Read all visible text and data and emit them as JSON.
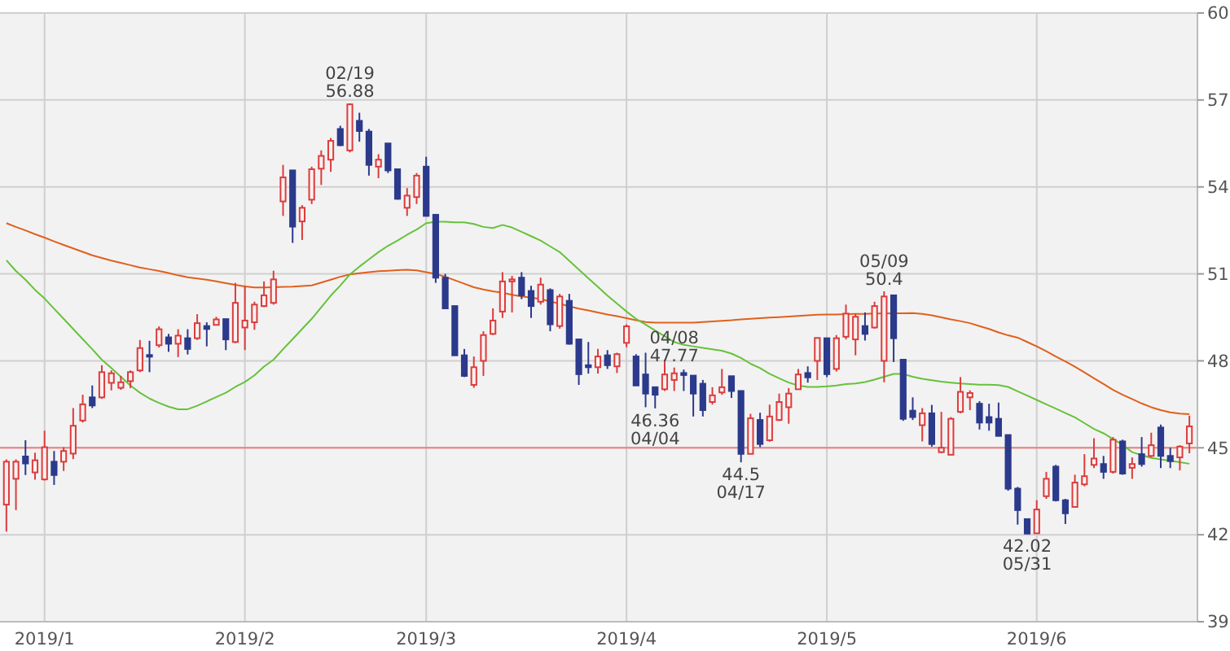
{
  "chart_data": {
    "type": "candlestick",
    "categories": [
      null,
      null,
      null,
      null,
      "2019/1",
      null,
      null,
      null,
      null,
      null,
      null,
      null,
      null,
      null,
      null,
      null,
      null,
      null,
      null,
      null,
      null,
      null,
      null,
      null,
      null,
      "2019/2",
      null,
      null,
      null,
      null,
      null,
      null,
      null,
      null,
      null,
      null,
      null,
      null,
      null,
      null,
      null,
      null,
      null,
      null,
      "2019/3",
      null,
      null,
      null,
      null,
      null,
      null,
      null,
      null,
      null,
      null,
      null,
      null,
      null,
      null,
      null,
      null,
      null,
      null,
      null,
      null,
      "2019/4",
      null,
      null,
      null,
      null,
      null,
      null,
      null,
      null,
      null,
      null,
      null,
      null,
      null,
      null,
      null,
      null,
      null,
      null,
      null,
      null,
      "2019/5",
      null,
      null,
      null,
      null,
      null,
      null,
      null,
      null,
      null,
      null,
      null,
      null,
      null,
      null,
      null,
      null,
      null,
      null,
      null,
      null,
      null,
      "2019/6",
      null,
      null,
      null,
      null,
      null,
      null,
      null,
      null,
      null,
      null,
      null,
      null,
      null,
      null,
      null,
      null
    ],
    "ylim": [
      39,
      60
    ],
    "yticks": [
      39,
      42,
      45,
      48,
      51,
      54,
      57,
      60
    ],
    "grid": true,
    "ref_lines": [
      {
        "axis": "y",
        "value": 45,
        "color": "#f08080"
      }
    ],
    "annotations": [
      {
        "text": "02/19 56.88",
        "y": 56.88
      },
      {
        "text": "04/08 47.77",
        "y": 47.77
      },
      {
        "text": "46.36 04/04",
        "y": 46.36
      },
      {
        "text": "44.5 04/17",
        "y": 44.5
      },
      {
        "text": "05/09 50.4",
        "y": 50.4
      },
      {
        "text": "42.02 05/31",
        "y": 42.02
      }
    ],
    "series": [
      {
        "type": "line",
        "color": "#e0601c",
        "values": [
          52.75,
          52.62,
          52.5,
          52.37,
          52.25,
          52.12,
          52.0,
          51.88,
          51.76,
          51.64,
          51.55,
          51.46,
          51.38,
          51.3,
          51.22,
          51.16,
          51.1,
          51.03,
          50.95,
          50.88,
          50.84,
          50.8,
          50.74,
          50.68,
          50.62,
          50.57,
          50.53,
          50.53,
          50.54,
          50.55,
          50.56,
          50.58,
          50.6,
          50.7,
          50.8,
          50.9,
          50.98,
          51.02,
          51.06,
          51.09,
          51.11,
          51.13,
          51.14,
          51.12,
          51.06,
          51.0,
          50.9,
          50.78,
          50.66,
          50.54,
          50.46,
          50.4,
          50.35,
          50.28,
          50.22,
          50.18,
          50.13,
          50.05,
          49.97,
          49.88,
          49.8,
          49.74,
          49.67,
          49.6,
          49.54,
          49.47,
          49.4,
          49.34,
          49.32,
          49.32,
          49.32,
          49.32,
          49.32,
          49.34,
          49.36,
          49.38,
          49.4,
          49.43,
          49.45,
          49.47,
          49.49,
          49.51,
          49.53,
          49.55,
          49.57,
          49.59,
          49.6,
          49.6,
          49.61,
          49.62,
          49.62,
          49.63,
          49.63,
          49.64,
          49.64,
          49.65,
          49.62,
          49.57,
          49.5,
          49.43,
          49.37,
          49.3,
          49.2,
          49.1,
          48.98,
          48.88,
          48.8,
          48.65,
          48.5,
          48.33,
          48.15,
          47.98,
          47.8,
          47.6,
          47.4,
          47.2,
          47.0,
          46.83,
          46.68,
          46.53,
          46.4,
          46.3,
          46.22,
          46.18,
          46.16
        ]
      },
      {
        "type": "line",
        "color": "#66c23a",
        "values": [
          51.47,
          51.1,
          50.8,
          50.45,
          50.15,
          49.8,
          49.45,
          49.1,
          48.75,
          48.4,
          48.04,
          47.75,
          47.45,
          47.15,
          46.9,
          46.7,
          46.55,
          46.42,
          46.33,
          46.33,
          46.45,
          46.6,
          46.75,
          46.9,
          47.1,
          47.27,
          47.5,
          47.8,
          48.04,
          48.4,
          48.75,
          49.1,
          49.45,
          49.85,
          50.25,
          50.6,
          50.98,
          51.25,
          51.5,
          51.75,
          51.97,
          52.15,
          52.35,
          52.53,
          52.75,
          52.8,
          52.8,
          52.78,
          52.78,
          52.72,
          52.62,
          52.58,
          52.69,
          52.6,
          52.45,
          52.3,
          52.15,
          51.95,
          51.75,
          51.45,
          51.15,
          50.85,
          50.55,
          50.25,
          49.98,
          49.7,
          49.45,
          49.25,
          49.05,
          48.85,
          48.65,
          48.55,
          48.5,
          48.45,
          48.4,
          48.35,
          48.25,
          48.1,
          47.9,
          47.75,
          47.55,
          47.4,
          47.25,
          47.15,
          47.1,
          47.1,
          47.12,
          47.15,
          47.2,
          47.22,
          47.27,
          47.35,
          47.45,
          47.55,
          47.55,
          47.45,
          47.38,
          47.33,
          47.28,
          47.25,
          47.22,
          47.2,
          47.18,
          47.18,
          47.16,
          47.1,
          46.95,
          46.8,
          46.65,
          46.5,
          46.35,
          46.2,
          46.05,
          45.85,
          45.65,
          45.5,
          45.3,
          45.1,
          44.85,
          44.75,
          44.65,
          44.6,
          44.55,
          44.5,
          44.45
        ]
      },
      {
        "ohlc": [
          [
            43.04,
            44.6,
            42.11,
            44.52
          ],
          [
            43.93,
            44.6,
            42.85,
            44.52
          ],
          [
            44.7,
            45.26,
            44.06,
            44.46
          ],
          [
            44.15,
            44.83,
            43.9,
            44.57
          ],
          [
            43.91,
            45.59,
            43.87,
            45.02
          ],
          [
            44.52,
            44.89,
            43.72,
            44.06
          ],
          [
            44.52,
            45.02,
            44.2,
            44.89
          ],
          [
            44.8,
            46.37,
            44.61,
            45.76
          ],
          [
            45.94,
            46.83,
            45.87,
            46.5
          ],
          [
            46.74,
            47.15,
            46.37,
            46.46
          ],
          [
            46.74,
            47.85,
            46.69,
            47.61
          ],
          [
            47.24,
            47.67,
            46.98,
            47.57
          ],
          [
            47.07,
            47.48,
            47.0,
            47.26
          ],
          [
            47.3,
            47.67,
            47.06,
            47.61
          ],
          [
            47.67,
            48.72,
            47.61,
            48.44
          ],
          [
            48.2,
            48.69,
            47.61,
            48.15
          ],
          [
            48.54,
            49.19,
            48.46,
            49.09
          ],
          [
            48.81,
            48.93,
            48.31,
            48.59
          ],
          [
            48.59,
            49.09,
            48.13,
            48.87
          ],
          [
            48.78,
            49.09,
            48.22,
            48.41
          ],
          [
            48.78,
            49.61,
            48.72,
            49.3
          ],
          [
            49.2,
            49.33,
            48.5,
            49.1
          ],
          [
            49.24,
            49.52,
            49.24,
            49.43
          ],
          [
            49.44,
            49.44,
            48.37,
            48.74
          ],
          [
            48.65,
            50.69,
            48.61,
            50.0
          ],
          [
            49.15,
            50.59,
            48.37,
            49.39
          ],
          [
            49.33,
            50.04,
            49.07,
            49.94
          ],
          [
            49.89,
            50.74,
            49.85,
            50.26
          ],
          [
            50.0,
            51.11,
            49.94,
            50.81
          ],
          [
            53.5,
            54.76,
            53.0,
            54.33
          ],
          [
            54.57,
            54.57,
            52.07,
            52.63
          ],
          [
            52.81,
            53.37,
            52.17,
            53.28
          ],
          [
            53.56,
            54.7,
            53.41,
            54.61
          ],
          [
            54.63,
            55.26,
            54.07,
            55.07
          ],
          [
            54.94,
            55.69,
            54.52,
            55.59
          ],
          [
            56.0,
            56.11,
            55.41,
            55.44
          ],
          [
            55.26,
            56.88,
            55.19,
            56.85
          ],
          [
            56.28,
            56.56,
            55.56,
            55.93
          ],
          [
            55.91,
            56.0,
            54.39,
            54.76
          ],
          [
            54.7,
            55.13,
            54.3,
            54.94
          ],
          [
            55.5,
            55.5,
            54.48,
            54.57
          ],
          [
            54.61,
            54.61,
            53.56,
            53.59
          ],
          [
            53.28,
            53.96,
            53.0,
            53.7
          ],
          [
            53.65,
            54.48,
            53.41,
            54.39
          ],
          [
            54.7,
            55.04,
            53.0,
            53.0
          ],
          [
            53.04,
            53.04,
            50.69,
            50.87
          ],
          [
            50.87,
            51.0,
            49.81,
            49.81
          ],
          [
            49.89,
            49.89,
            48.19,
            48.19
          ],
          [
            48.19,
            48.41,
            47.44,
            47.48
          ],
          [
            47.17,
            48.15,
            47.07,
            47.78
          ],
          [
            48.0,
            49.02,
            47.48,
            48.89
          ],
          [
            48.93,
            49.81,
            48.89,
            49.39
          ],
          [
            49.7,
            51.06,
            49.48,
            50.74
          ],
          [
            50.74,
            50.93,
            49.67,
            50.81
          ],
          [
            50.87,
            51.06,
            50.13,
            50.26
          ],
          [
            50.41,
            50.59,
            49.48,
            49.89
          ],
          [
            50.04,
            50.87,
            49.94,
            50.63
          ],
          [
            50.44,
            50.5,
            49.02,
            49.26
          ],
          [
            49.2,
            50.31,
            49.11,
            50.22
          ],
          [
            50.07,
            50.31,
            48.56,
            48.59
          ],
          [
            48.74,
            48.74,
            47.17,
            47.54
          ],
          [
            47.85,
            48.65,
            47.56,
            47.78
          ],
          [
            47.78,
            48.41,
            47.56,
            48.15
          ],
          [
            48.19,
            48.37,
            47.72,
            47.85
          ],
          [
            47.81,
            48.28,
            47.58,
            48.23
          ],
          [
            48.62,
            49.26,
            48.47,
            49.19
          ],
          [
            48.15,
            48.23,
            47.15,
            47.15
          ],
          [
            47.53,
            48.28,
            46.4,
            46.87
          ],
          [
            47.09,
            47.09,
            46.36,
            46.83
          ],
          [
            47.02,
            48.04,
            46.96,
            47.53
          ],
          [
            47.34,
            47.77,
            46.96,
            47.57
          ],
          [
            47.58,
            47.7,
            46.96,
            47.51
          ],
          [
            47.49,
            47.49,
            46.08,
            46.87
          ],
          [
            47.21,
            47.34,
            46.08,
            46.3
          ],
          [
            46.58,
            47.09,
            46.49,
            46.81
          ],
          [
            46.91,
            47.72,
            46.83,
            47.09
          ],
          [
            47.47,
            47.47,
            46.72,
            46.96
          ],
          [
            46.96,
            46.96,
            44.5,
            44.79
          ],
          [
            44.79,
            46.17,
            44.79,
            46.02
          ],
          [
            45.96,
            46.21,
            45.02,
            45.13
          ],
          [
            45.26,
            46.49,
            45.21,
            46.08
          ],
          [
            45.96,
            46.87,
            45.92,
            46.58
          ],
          [
            46.4,
            47.06,
            45.83,
            46.87
          ],
          [
            47.02,
            47.72,
            47.02,
            47.53
          ],
          [
            47.58,
            47.81,
            47.25,
            47.43
          ],
          [
            48.0,
            48.79,
            47.34,
            48.79
          ],
          [
            48.78,
            48.78,
            47.44,
            47.54
          ],
          [
            47.72,
            48.89,
            47.63,
            48.78
          ],
          [
            48.83,
            49.94,
            48.74,
            49.63
          ],
          [
            48.74,
            49.63,
            48.19,
            49.52
          ],
          [
            49.2,
            49.67,
            48.7,
            48.93
          ],
          [
            49.15,
            50.04,
            49.11,
            49.89
          ],
          [
            48.0,
            50.4,
            47.26,
            50.22
          ],
          [
            50.26,
            50.26,
            47.96,
            48.78
          ],
          [
            48.04,
            48.04,
            45.93,
            46.0
          ],
          [
            46.28,
            46.74,
            45.96,
            46.06
          ],
          [
            45.78,
            46.37,
            45.22,
            46.19
          ],
          [
            46.19,
            46.48,
            45.04,
            45.13
          ],
          [
            44.85,
            46.24,
            44.81,
            45.0
          ],
          [
            44.76,
            46.06,
            44.76,
            46.0
          ],
          [
            46.24,
            47.44,
            46.19,
            46.93
          ],
          [
            46.74,
            46.98,
            46.3,
            46.89
          ],
          [
            46.52,
            46.61,
            45.63,
            45.87
          ],
          [
            46.06,
            46.52,
            45.59,
            45.87
          ],
          [
            46.0,
            46.56,
            45.41,
            45.41
          ],
          [
            45.44,
            45.44,
            43.52,
            43.59
          ],
          [
            43.59,
            43.65,
            42.35,
            42.85
          ],
          [
            42.54,
            42.54,
            42.02,
            42.04
          ],
          [
            42.05,
            43.19,
            42.03,
            42.87
          ],
          [
            43.33,
            44.17,
            43.24,
            43.93
          ],
          [
            44.35,
            44.41,
            43.15,
            43.19
          ],
          [
            43.19,
            43.24,
            42.37,
            42.74
          ],
          [
            42.96,
            44.07,
            42.93,
            43.8
          ],
          [
            43.74,
            44.78,
            43.67,
            44.02
          ],
          [
            44.41,
            45.33,
            44.3,
            44.63
          ],
          [
            44.44,
            44.72,
            43.93,
            44.17
          ],
          [
            44.17,
            45.37,
            44.11,
            45.28
          ],
          [
            45.22,
            45.28,
            44.07,
            44.11
          ],
          [
            44.31,
            44.67,
            43.93,
            44.44
          ],
          [
            44.78,
            45.37,
            44.35,
            44.44
          ],
          [
            44.72,
            45.52,
            44.67,
            45.09
          ],
          [
            45.7,
            45.8,
            44.3,
            44.72
          ],
          [
            44.72,
            45.0,
            44.3,
            44.54
          ],
          [
            44.67,
            45.09,
            44.22,
            45.04
          ],
          [
            45.15,
            46.11,
            44.81,
            45.74
          ]
        ],
        "colors": [
          "#dc3c3c",
          "#dc3c3c",
          "#2c3a8c",
          "#dc3c3c",
          "#dc3c3c",
          "#2c3a8c",
          "#dc3c3c",
          "#dc3c3c",
          "#dc3c3c",
          "#2c3a8c",
          "#dc3c3c",
          "#dc3c3c",
          "#dc3c3c",
          "#dc3c3c",
          "#dc3c3c",
          "#2c3a8c",
          "#dc3c3c",
          "#2c3a8c",
          "#dc3c3c",
          "#2c3a8c",
          "#dc3c3c",
          "#2c3a8c",
          "#dc3c3c",
          "#2c3a8c",
          "#dc3c3c",
          "#dc3c3c",
          "#dc3c3c",
          "#dc3c3c",
          "#dc3c3c",
          "#dc3c3c",
          "#2c3a8c",
          "#dc3c3c",
          "#dc3c3c",
          "#dc3c3c",
          "#dc3c3c",
          "#2c3a8c",
          "#dc3c3c",
          "#2c3a8c",
          "#2c3a8c",
          "#dc3c3c",
          "#2c3a8c",
          "#2c3a8c",
          "#dc3c3c",
          "#dc3c3c",
          "#2c3a8c",
          "#2c3a8c",
          "#2c3a8c",
          "#2c3a8c",
          "#2c3a8c",
          "#dc3c3c",
          "#dc3c3c",
          "#dc3c3c",
          "#dc3c3c",
          "#dc3c3c",
          "#2c3a8c",
          "#2c3a8c",
          "#dc3c3c",
          "#2c3a8c",
          "#dc3c3c",
          "#2c3a8c",
          "#2c3a8c",
          "#2c3a8c",
          "#dc3c3c",
          "#2c3a8c",
          "#dc3c3c",
          "#dc3c3c",
          "#2c3a8c",
          "#2c3a8c",
          "#2c3a8c",
          "#dc3c3c",
          "#dc3c3c",
          "#2c3a8c",
          "#2c3a8c",
          "#2c3a8c",
          "#dc3c3c",
          "#dc3c3c",
          "#2c3a8c",
          "#2c3a8c",
          "#dc3c3c",
          "#2c3a8c",
          "#dc3c3c",
          "#dc3c3c",
          "#dc3c3c",
          "#dc3c3c",
          "#2c3a8c",
          "#dc3c3c",
          "#2c3a8c",
          "#dc3c3c",
          "#dc3c3c",
          "#dc3c3c",
          "#2c3a8c",
          "#dc3c3c",
          "#dc3c3c",
          "#2c3a8c",
          "#2c3a8c",
          "#2c3a8c",
          "#dc3c3c",
          "#2c3a8c",
          "#dc3c3c",
          "#dc3c3c",
          "#dc3c3c",
          "#dc3c3c",
          "#2c3a8c",
          "#2c3a8c",
          "#2c3a8c",
          "#2c3a8c",
          "#2c3a8c",
          "#2c3a8c",
          "#dc3c3c",
          "#dc3c3c",
          "#2c3a8c",
          "#2c3a8c",
          "#dc3c3c",
          "#dc3c3c",
          "#dc3c3c",
          "#2c3a8c",
          "#dc3c3c",
          "#2c3a8c",
          "#dc3c3c",
          "#2c3a8c",
          "#dc3c3c",
          "#2c3a8c",
          "#2c3a8c",
          "#dc3c3c",
          "#dc3c3c"
        ]
      }
    ]
  }
}
